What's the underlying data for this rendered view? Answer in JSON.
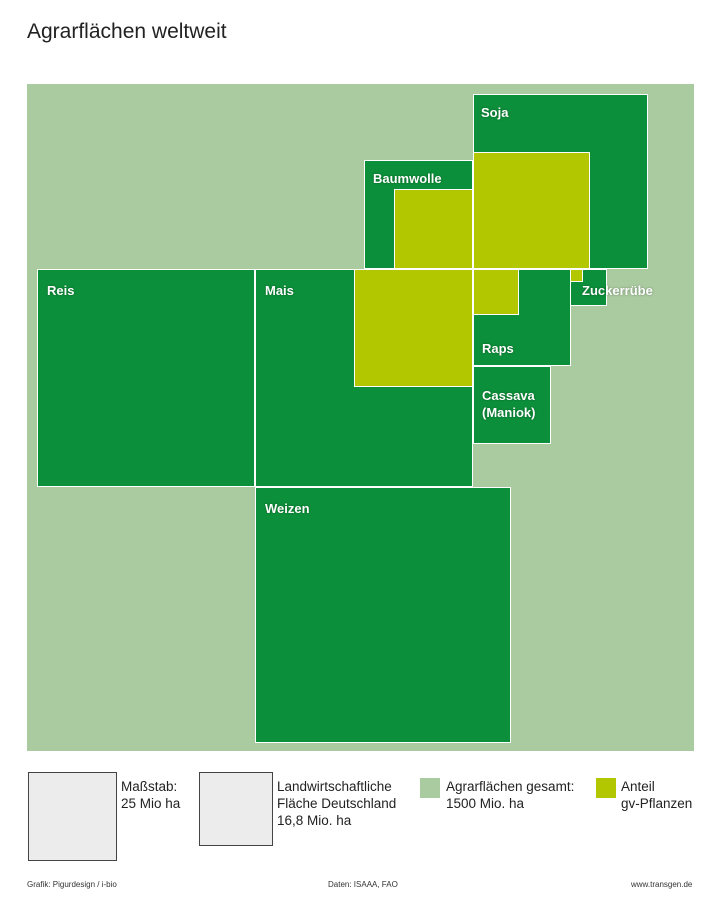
{
  "title": "Agrarflächen weltweit",
  "colors": {
    "total_area": "#aacaa0",
    "crop_area": "#0c8f3a",
    "gv_share": "#b2c700"
  },
  "crops": {
    "soja": "Soja",
    "baumwolle": "Baumwolle",
    "zuckerruebe": "Zuckerrübe",
    "reis": "Reis",
    "mais": "Mais",
    "raps": "Raps",
    "cassava": "Cassava\n(Maniok)",
    "weizen": "Weizen"
  },
  "legend": {
    "scale": "Maßstab:\n25 Mio ha",
    "germany": "Landwirtschaftliche\nFläche Deutschland\n16,8 Mio. ha",
    "total": "Agrarflächen gesamt:\n1500 Mio. ha",
    "gv": "Anteil\ngv-Pflanzen"
  },
  "footer": {
    "credit": "Grafik: Pigurdesign / i-bio",
    "source": "Daten: ISAAA, FAO",
    "website": "www.transgen.de"
  }
}
